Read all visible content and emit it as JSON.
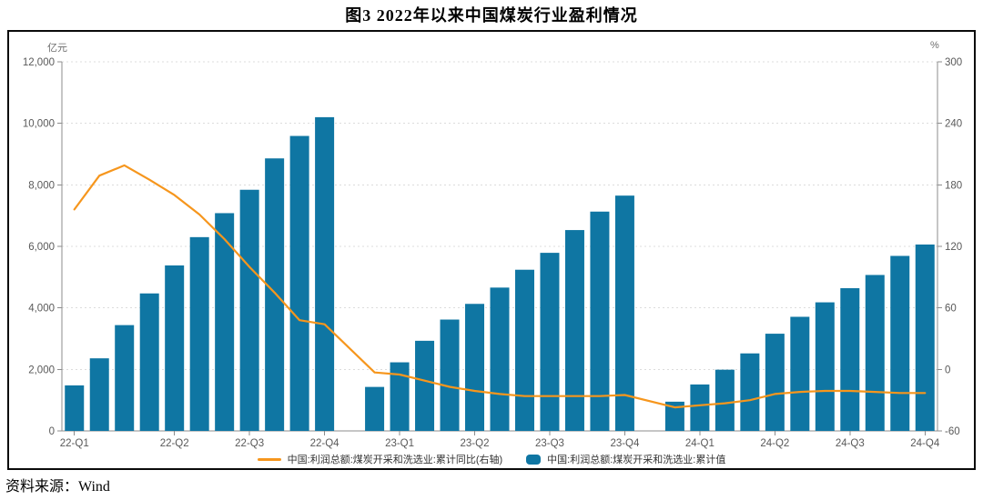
{
  "title": "图3  2022年以来中国煤炭行业盈利情况",
  "source": "资料来源：Wind",
  "panel": {
    "left_axis_unit": "亿元",
    "right_axis_unit": "%"
  },
  "colors": {
    "bar": "#0f76a3",
    "line": "#f6961d",
    "grid": "#dcdcdc",
    "axis": "#8c8c8c",
    "tick_text": "#595959"
  },
  "legend": [
    {
      "type": "line",
      "color": "#f6961d",
      "label": "中国:利润总额:煤炭开采和洗选业:累计同比(右轴)"
    },
    {
      "type": "square",
      "color": "#0f76a3",
      "label": "中国:利润总额:煤炭开采和洗选业:累计值"
    }
  ],
  "chart_data": {
    "type": "bar+line",
    "x": [
      "2022-02",
      "2022-03",
      "2022-04",
      "2022-05",
      "2022-06",
      "2022-07",
      "2022-08",
      "2022-09",
      "2022-10",
      "2022-11",
      "2022-12",
      "2023-01",
      "2023-02",
      "2023-03",
      "2023-04",
      "2023-05",
      "2023-06",
      "2023-07",
      "2023-08",
      "2023-09",
      "2023-10",
      "2023-11",
      "2023-12",
      "2024-01",
      "2024-02",
      "2024-03",
      "2024-04",
      "2024-05",
      "2024-06",
      "2024-07",
      "2024-08",
      "2024-09",
      "2024-10",
      "2024-11",
      "2024-12"
    ],
    "series": [
      {
        "name": "中国:利润总额:煤炭开采和洗选业:累计值",
        "type": "bar",
        "axis": "left",
        "unit": "亿元",
        "values": [
          1480,
          2360,
          3440,
          4470,
          5380,
          6300,
          7080,
          7840,
          8860,
          9590,
          10200,
          null,
          1430,
          2230,
          2930,
          3620,
          4130,
          4660,
          5240,
          5790,
          6530,
          7130,
          7650,
          null,
          950,
          1510,
          1990,
          2520,
          3160,
          3710,
          4180,
          4640,
          5070,
          5690,
          6060
        ]
      },
      {
        "name": "中国:利润总额:煤炭开采和洗选业:累计同比(右轴)",
        "type": "line",
        "axis": "right",
        "unit": "%",
        "values": [
          156,
          189,
          199,
          185,
          170,
          151,
          127,
          100,
          75,
          48,
          44,
          null,
          -3,
          -5,
          -11,
          -17,
          -21,
          -24,
          -26,
          -26,
          -26,
          -26,
          -25,
          null,
          -37,
          -35,
          -33,
          -30,
          -24,
          -22,
          -21,
          -21,
          -22,
          -23,
          -23
        ]
      }
    ],
    "x_ticks": [
      {
        "slot": 0,
        "label": "22-Q1"
      },
      {
        "slot": 4,
        "label": "22-Q2"
      },
      {
        "slot": 7,
        "label": "22-Q3"
      },
      {
        "slot": 10,
        "label": "22-Q4"
      },
      {
        "slot": 13,
        "label": "23-Q1"
      },
      {
        "slot": 16,
        "label": "23-Q2"
      },
      {
        "slot": 19,
        "label": "23-Q3"
      },
      {
        "slot": 22,
        "label": "23-Q4"
      },
      {
        "slot": 25,
        "label": "24-Q1"
      },
      {
        "slot": 28,
        "label": "24-Q2"
      },
      {
        "slot": 31,
        "label": "24-Q3"
      },
      {
        "slot": 34,
        "label": "24-Q4"
      }
    ],
    "left_axis": {
      "min": 0,
      "max": 12000,
      "step": 2000,
      "unit": "亿元",
      "ticks": [
        "0",
        "2,000",
        "4,000",
        "6,000",
        "8,000",
        "10,000",
        "12,000"
      ]
    },
    "right_axis": {
      "min": -60,
      "max": 300,
      "step": 60,
      "unit": "%",
      "ticks": [
        "-60",
        "0",
        "60",
        "120",
        "180",
        "240",
        "300"
      ]
    },
    "grid": "dashed-horizontal",
    "legend_position": "bottom-center"
  }
}
